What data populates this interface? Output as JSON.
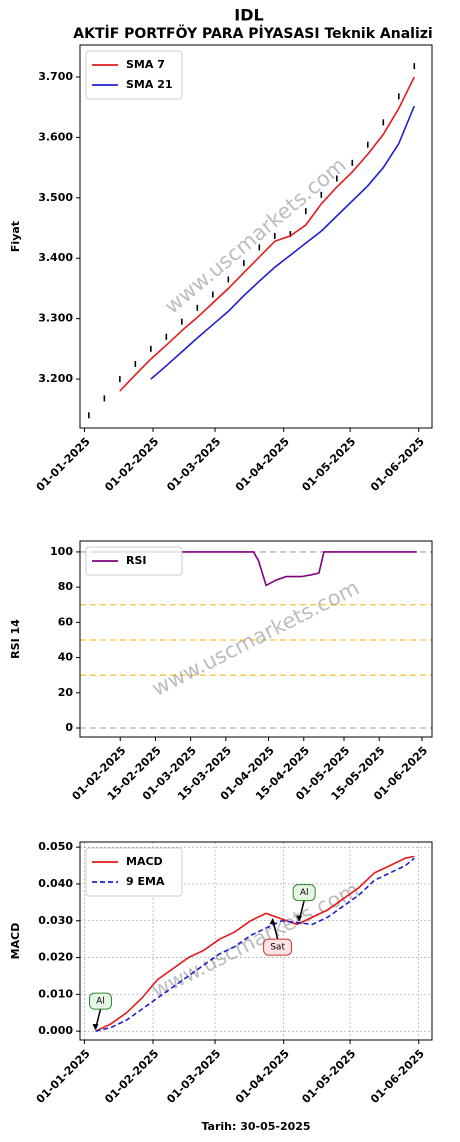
{
  "title": "IDL",
  "subtitle": "AKTİF PORTFÖY PARA PİYASASI Teknik Analizi",
  "watermark": "www.uscmarkets.com",
  "chart_data": [
    {
      "type": "line",
      "ylabel": "Fiyat",
      "legend": "upper left",
      "x": [
        "2025-01-03",
        "2025-01-10",
        "2025-01-17",
        "2025-01-24",
        "2025-01-31",
        "2025-02-07",
        "2025-02-14",
        "2025-02-21",
        "2025-02-28",
        "2025-03-07",
        "2025-03-14",
        "2025-03-21",
        "2025-03-28",
        "2025-04-04",
        "2025-04-11",
        "2025-04-18",
        "2025-04-25",
        "2025-05-02",
        "2025-05-09",
        "2025-05-16",
        "2025-05-23",
        "2025-05-30"
      ],
      "series": [
        {
          "color": "#000000",
          "style": "points",
          "values": [
            3.14,
            3.168,
            3.2,
            3.225,
            3.25,
            3.27,
            3.295,
            3.318,
            3.34,
            3.365,
            3.392,
            3.418,
            3.437,
            3.44,
            3.478,
            3.505,
            3.532,
            3.558,
            3.588,
            3.625,
            3.668,
            3.718
          ]
        },
        {
          "name": "SMA 7",
          "color": "#e41a1c",
          "style": "solid",
          "values": [
            null,
            null,
            3.18,
            3.207,
            3.233,
            3.256,
            3.28,
            3.302,
            3.326,
            3.35,
            3.376,
            3.402,
            3.428,
            3.437,
            3.455,
            3.49,
            3.518,
            3.543,
            3.572,
            3.605,
            3.648,
            3.7
          ]
        },
        {
          "name": "SMA 21",
          "color": "#1f1fd0",
          "style": "solid",
          "values": [
            null,
            null,
            null,
            null,
            3.2,
            3.222,
            3.245,
            3.268,
            3.29,
            3.312,
            3.338,
            3.362,
            3.385,
            3.405,
            3.425,
            3.445,
            3.47,
            3.495,
            3.52,
            3.55,
            3.59,
            3.652
          ]
        }
      ],
      "xlim": [
        "2024-12-30",
        "2025-06-07"
      ],
      "ylim": [
        3.119,
        3.753
      ],
      "xticks": [
        {
          "value": "2025-01-01",
          "label": "01-01-2025"
        },
        {
          "value": "2025-02-01",
          "label": "01-02-2025"
        },
        {
          "value": "2025-03-01",
          "label": "01-03-2025"
        },
        {
          "value": "2025-04-01",
          "label": "01-04-2025"
        },
        {
          "value": "2025-05-01",
          "label": "01-05-2025"
        },
        {
          "value": "2025-06-01",
          "label": "01-06-2025"
        }
      ],
      "yticks": [
        {
          "value": 3.2,
          "label": "3.200"
        },
        {
          "value": 3.3,
          "label": "3.300"
        },
        {
          "value": 3.4,
          "label": "3.400"
        },
        {
          "value": 3.5,
          "label": "3.500"
        },
        {
          "value": 3.6,
          "label": "3.600"
        },
        {
          "value": 3.7,
          "label": "3.700"
        }
      ],
      "grid": false
    },
    {
      "type": "line",
      "ylabel": "RSI 14",
      "legend": "upper left",
      "x": [
        "2025-01-20",
        "2025-01-31",
        "2025-02-14",
        "2025-02-28",
        "2025-03-14",
        "2025-03-26",
        "2025-03-28",
        "2025-03-31",
        "2025-04-04",
        "2025-04-08",
        "2025-04-14",
        "2025-04-18",
        "2025-04-21",
        "2025-04-23",
        "2025-05-02",
        "2025-05-16",
        "2025-05-30"
      ],
      "series": [
        {
          "name": "RSI",
          "color": "#800080",
          "style": "solid",
          "values": [
            100,
            100,
            100,
            100,
            100,
            100,
            95,
            81,
            84,
            86,
            86,
            87,
            88,
            100,
            100,
            100,
            100
          ]
        }
      ],
      "hlines": [
        {
          "value": 0,
          "color": "#b0b0b0"
        },
        {
          "value": 30,
          "color": "#f5c542"
        },
        {
          "value": 50,
          "color": "#f5c542"
        },
        {
          "value": 70,
          "color": "#f5c542"
        },
        {
          "value": 100,
          "color": "#b0b0b0"
        }
      ],
      "xlim": [
        "2025-01-16",
        "2025-06-05"
      ],
      "ylim": [
        -5.1,
        106.2
      ],
      "xticks": [
        {
          "value": "2025-02-01",
          "label": "01-02-2025"
        },
        {
          "value": "2025-02-15",
          "label": "15-02-2025"
        },
        {
          "value": "2025-03-01",
          "label": "01-03-2025"
        },
        {
          "value": "2025-03-15",
          "label": "15-03-2025"
        },
        {
          "value": "2025-04-01",
          "label": "01-04-2025"
        },
        {
          "value": "2025-04-15",
          "label": "15-04-2025"
        },
        {
          "value": "2025-05-01",
          "label": "01-05-2025"
        },
        {
          "value": "2025-05-15",
          "label": "15-05-2025"
        },
        {
          "value": "2025-06-01",
          "label": "01-06-2025"
        }
      ],
      "yticks": [
        0,
        20,
        40,
        60,
        80,
        100
      ],
      "grid": false
    },
    {
      "type": "line",
      "ylabel": "MACD",
      "xlabel": "Tarih: 30-05-2025",
      "legend": "upper left",
      "x": [
        "2025-01-06",
        "2025-01-13",
        "2025-01-20",
        "2025-01-27",
        "2025-02-03",
        "2025-02-10",
        "2025-02-17",
        "2025-02-24",
        "2025-03-03",
        "2025-03-10",
        "2025-03-17",
        "2025-03-24",
        "2025-03-31",
        "2025-04-07",
        "2025-04-14",
        "2025-04-21",
        "2025-04-28",
        "2025-05-05",
        "2025-05-12",
        "2025-05-19",
        "2025-05-26",
        "2025-05-30"
      ],
      "series": [
        {
          "name": "MACD",
          "color": "#e41a1c",
          "style": "solid",
          "values": [
            0.0,
            0.002,
            0.005,
            0.009,
            0.014,
            0.017,
            0.02,
            0.022,
            0.025,
            0.027,
            0.03,
            0.032,
            0.0305,
            0.029,
            0.031,
            0.033,
            0.036,
            0.039,
            0.043,
            0.045,
            0.047,
            0.0475
          ]
        },
        {
          "name": "9 EMA",
          "color": "#1f1fd0",
          "style": "dash",
          "values": [
            0.0,
            0.001,
            0.003,
            0.006,
            0.009,
            0.012,
            0.015,
            0.018,
            0.021,
            0.023,
            0.026,
            0.028,
            0.03,
            0.0295,
            0.029,
            0.031,
            0.034,
            0.037,
            0.041,
            0.043,
            0.045,
            0.047
          ]
        }
      ],
      "annotations": [
        {
          "text": "Al",
          "x": "2025-01-06",
          "y": 0.0,
          "color": "#2a8a2a",
          "fill": "#e6f5e6"
        },
        {
          "text": "Sat",
          "x": "2025-03-27",
          "y": 0.031,
          "color": "#d03030",
          "fill": "#fde4e4"
        },
        {
          "text": "Al",
          "x": "2025-04-08",
          "y": 0.0295,
          "color": "#2a8a2a",
          "fill": "#e6f5e6"
        }
      ],
      "xlim": [
        "2024-12-30",
        "2025-06-07"
      ],
      "ylim": [
        -0.0024,
        0.0514
      ],
      "xticks": [
        {
          "value": "2025-01-01",
          "label": "01-01-2025"
        },
        {
          "value": "2025-02-01",
          "label": "01-02-2025"
        },
        {
          "value": "2025-03-01",
          "label": "01-03-2025"
        },
        {
          "value": "2025-04-01",
          "label": "01-04-2025"
        },
        {
          "value": "2025-05-01",
          "label": "01-05-2025"
        },
        {
          "value": "2025-06-01",
          "label": "01-06-2025"
        }
      ],
      "yticks": [
        {
          "value": 0,
          "label": "0.000"
        },
        {
          "value": 0.01,
          "label": "0.010"
        },
        {
          "value": 0.02,
          "label": "0.020"
        },
        {
          "value": 0.03,
          "label": "0.030"
        },
        {
          "value": 0.04,
          "label": "0.040"
        },
        {
          "value": 0.05,
          "label": "0.050"
        }
      ],
      "grid": true
    }
  ]
}
